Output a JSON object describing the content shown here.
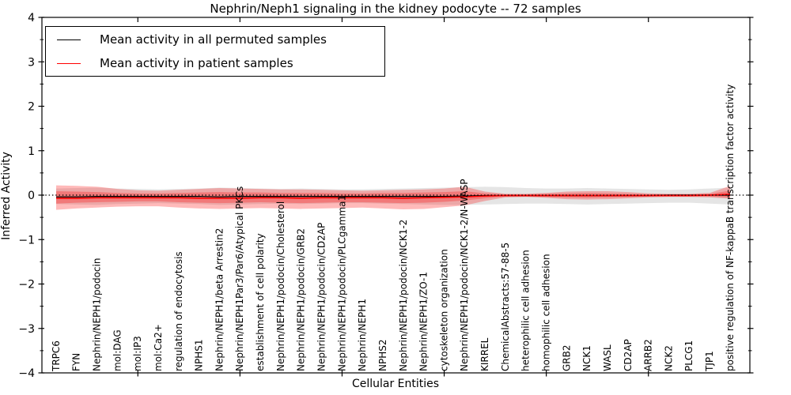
{
  "figure": {
    "title": "Nephrin/Neph1 signaling in the kidney podocyte -- 72 samples",
    "xlabel": "Cellular Entities",
    "ylabel": "Inferred Activity"
  },
  "legend": {
    "items": [
      {
        "label": "Mean activity in all permuted samples",
        "color": "#000000"
      },
      {
        "label": "Mean activity in patient samples",
        "color": "#ff0000"
      }
    ]
  },
  "colors": {
    "patient_line": "#ff0000",
    "permuted_line": "#000000",
    "patient_band_fill": "#ff0000",
    "patient_band_opacity": 0.27,
    "permuted_band_fill": "#000000",
    "permuted_band_opacity": 0.1,
    "axis": "#000000",
    "zero_line": "#000000"
  },
  "chart_data": {
    "type": "area",
    "title": "Nephrin/Neph1 signaling in the kidney podocyte -- 72 samples",
    "xlabel": "Cellular Entities",
    "ylabel": "Inferred Activity",
    "ylim": [
      -4,
      4
    ],
    "grid": false,
    "legend_position": "upper left",
    "yticks": [
      {
        "value": 4,
        "label": "4"
      },
      {
        "value": 3,
        "label": "3"
      },
      {
        "value": 2,
        "label": "2"
      },
      {
        "value": 1,
        "label": "1"
      },
      {
        "value": 0,
        "label": "0"
      },
      {
        "value": -1,
        "label": "−1"
      },
      {
        "value": -2,
        "label": "−2"
      },
      {
        "value": -3,
        "label": "−3"
      },
      {
        "value": -4,
        "label": "−4"
      }
    ],
    "y_minor_tick_step": 0.5,
    "x_major_tick_indices": [
      4,
      9,
      14,
      19,
      24,
      29
    ],
    "zero_reference_line": 0,
    "categories": [
      "TRPC6",
      "FYN",
      "Nephrin/NEPH1/podocin",
      "mol:DAG",
      "mol:IP3",
      "mol:Ca2+",
      "regulation of endocytosis",
      "NPHS1",
      "Nephrin/NEPH1/beta Arrestin2",
      "Nephrin/NEPH1Par3/Par6/Atypical PKCs",
      "establishment of cell polarity",
      "Nephrin/NEPH1/podocin/Cholesterol",
      "Nephrin/NEPH1/podocin/GRB2",
      "Nephrin/NEPH1/podocin/CD2AP",
      "Nephrin/NEPH1/podocin/PLCgamma1",
      "Nephrin/NEPH1",
      "NPHS2",
      "Nephrin/NEPH1/podocin/NCK1-2",
      "Nephrin/NEPH1/ZO-1",
      "cytoskeleton organization",
      "Nephrin/NEPH1/podocin/NCK1-2/N-WASP",
      "KIRREL",
      "ChemicalAbstracts:57-88-5",
      "heterophilic cell adhesion",
      "homophilic cell adhesion",
      "GRB2",
      "NCK1",
      "WASL",
      "CD2AP",
      "ARRB2",
      "NCK2",
      "PLCG1",
      "TJP1",
      "positive regulation of NF-kappaB transcription factor activity"
    ],
    "series": [
      {
        "name": "Mean activity in all permuted samples",
        "role": "line",
        "color": "#000000",
        "values": [
          -0.04,
          -0.04,
          -0.03,
          -0.03,
          -0.03,
          -0.03,
          -0.03,
          -0.03,
          -0.04,
          -0.03,
          -0.03,
          -0.03,
          -0.03,
          -0.03,
          -0.03,
          -0.03,
          -0.03,
          -0.03,
          -0.03,
          -0.03,
          -0.02,
          -0.01,
          -0.01,
          -0.01,
          -0.01,
          -0.01,
          -0.01,
          -0.01,
          -0.01,
          -0.01,
          0.0,
          0.0,
          0.0,
          0.0
        ]
      },
      {
        "name": "permuted-band",
        "role": "band",
        "top": [
          0.15,
          0.16,
          0.17,
          0.15,
          0.14,
          0.13,
          0.14,
          0.15,
          0.17,
          0.16,
          0.15,
          0.14,
          0.15,
          0.14,
          0.13,
          0.13,
          0.14,
          0.15,
          0.16,
          0.17,
          0.18,
          0.19,
          0.18,
          0.16,
          0.15,
          0.15,
          0.16,
          0.15,
          0.14,
          0.13,
          0.12,
          0.13,
          0.15,
          0.17
        ],
        "bottom": [
          -0.2,
          -0.21,
          -0.22,
          -0.2,
          -0.19,
          -0.18,
          -0.19,
          -0.2,
          -0.22,
          -0.21,
          -0.2,
          -0.19,
          -0.2,
          -0.19,
          -0.18,
          -0.18,
          -0.19,
          -0.2,
          -0.21,
          -0.22,
          -0.22,
          -0.21,
          -0.2,
          -0.19,
          -0.19,
          -0.2,
          -0.21,
          -0.2,
          -0.19,
          -0.18,
          -0.17,
          -0.17,
          -0.19,
          -0.21
        ]
      },
      {
        "name": "Mean activity in patient samples",
        "role": "line",
        "color": "#ff0000",
        "values": [
          -0.07,
          -0.07,
          -0.06,
          -0.06,
          -0.06,
          -0.06,
          -0.06,
          -0.07,
          -0.07,
          -0.07,
          -0.06,
          -0.06,
          -0.07,
          -0.06,
          -0.06,
          -0.06,
          -0.06,
          -0.07,
          -0.06,
          -0.05,
          -0.04,
          -0.02,
          -0.01,
          -0.01,
          -0.01,
          -0.01,
          -0.01,
          -0.01,
          -0.01,
          -0.01,
          -0.01,
          -0.01,
          0.0,
          0.02
        ]
      },
      {
        "name": "patient-band-outer",
        "role": "band",
        "top": [
          0.22,
          0.21,
          0.19,
          0.14,
          0.11,
          0.1,
          0.12,
          0.14,
          0.16,
          0.15,
          0.14,
          0.13,
          0.13,
          0.12,
          0.11,
          0.1,
          0.11,
          0.12,
          0.13,
          0.15,
          0.19,
          0.08,
          0.03,
          0.03,
          0.05,
          0.08,
          0.09,
          0.09,
          0.07,
          0.04,
          0.03,
          0.03,
          0.05,
          0.21
        ],
        "bottom": [
          -0.33,
          -0.3,
          -0.28,
          -0.26,
          -0.25,
          -0.25,
          -0.28,
          -0.3,
          -0.31,
          -0.3,
          -0.29,
          -0.3,
          -0.31,
          -0.3,
          -0.29,
          -0.28,
          -0.3,
          -0.32,
          -0.31,
          -0.27,
          -0.23,
          -0.13,
          -0.05,
          -0.04,
          -0.06,
          -0.09,
          -0.1,
          -0.09,
          -0.07,
          -0.05,
          -0.04,
          -0.04,
          -0.05,
          -0.08
        ]
      },
      {
        "name": "patient-band-inner",
        "role": "band",
        "top": [
          0.09,
          0.08,
          0.07,
          0.05,
          0.04,
          0.04,
          0.05,
          0.06,
          0.07,
          0.06,
          0.06,
          0.05,
          0.05,
          0.05,
          0.04,
          0.04,
          0.05,
          0.05,
          0.06,
          0.07,
          0.09,
          0.04,
          0.02,
          0.02,
          0.03,
          0.04,
          0.05,
          0.04,
          0.03,
          0.02,
          0.02,
          0.02,
          0.03,
          0.1
        ],
        "bottom": [
          -0.19,
          -0.17,
          -0.16,
          -0.15,
          -0.14,
          -0.14,
          -0.16,
          -0.17,
          -0.18,
          -0.17,
          -0.16,
          -0.17,
          -0.18,
          -0.17,
          -0.16,
          -0.16,
          -0.17,
          -0.18,
          -0.17,
          -0.15,
          -0.12,
          -0.07,
          -0.03,
          -0.03,
          -0.04,
          -0.05,
          -0.06,
          -0.05,
          -0.04,
          -0.03,
          -0.03,
          -0.03,
          -0.03,
          -0.05
        ]
      }
    ]
  }
}
